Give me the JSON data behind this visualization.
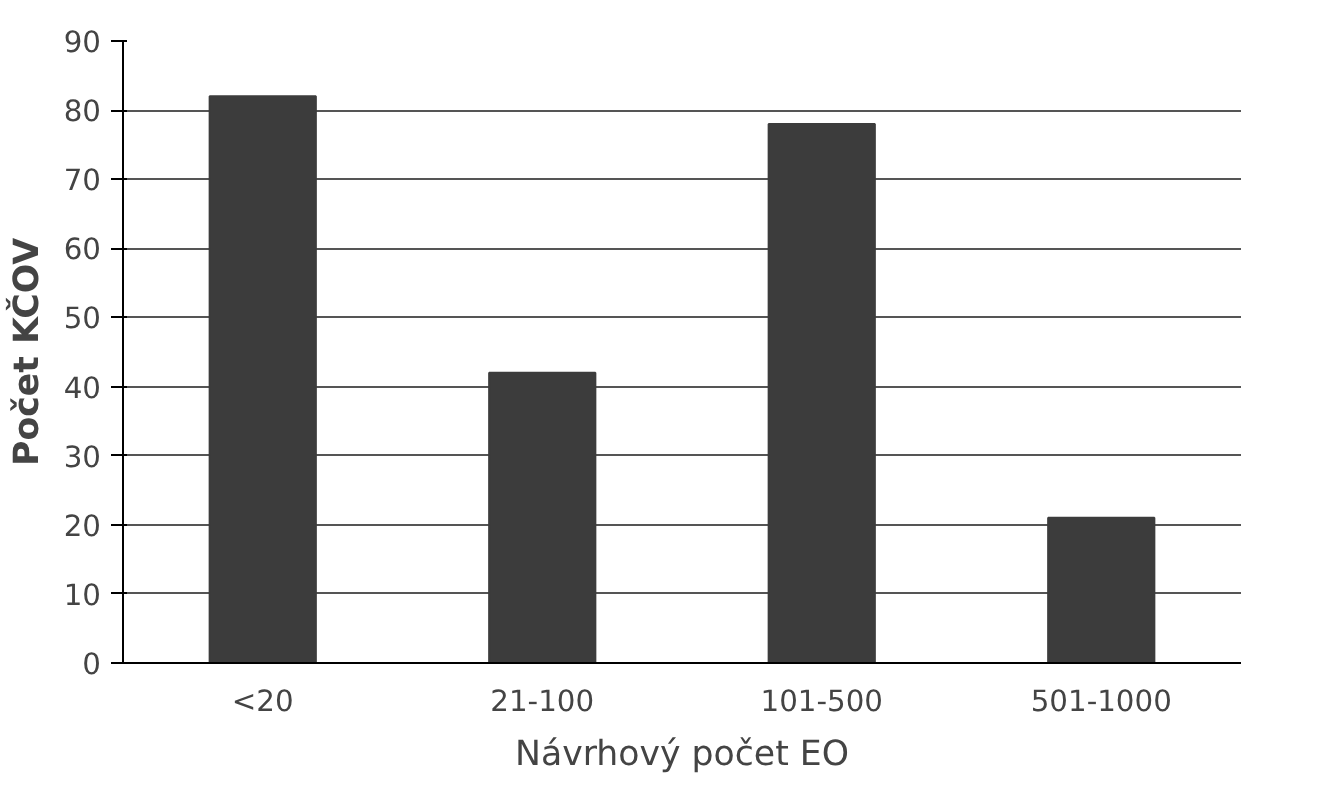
{
  "chart_data": {
    "type": "bar",
    "xlabel": "Návrhový počet EO",
    "ylabel": "Počet KČOV",
    "categories": [
      "<20",
      "21-100",
      "101-500",
      "501-1000"
    ],
    "values": [
      82,
      42,
      78,
      21
    ],
    "color": "#3c3c3c",
    "ylim": [
      0,
      90
    ],
    "yticks": [
      0,
      10,
      20,
      30,
      40,
      50,
      60,
      70,
      80,
      90
    ],
    "grid": "y"
  }
}
